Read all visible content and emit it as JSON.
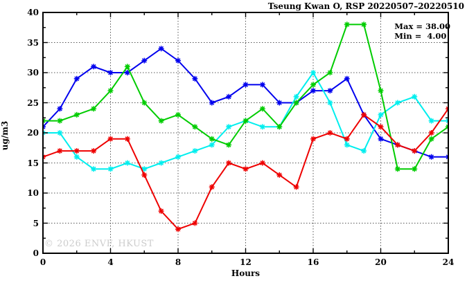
{
  "title": "Tseung Kwan O, RSP 20220507–20220510",
  "legend": {
    "max_label": "Max = 38.00",
    "min_label": "Min =  4.00"
  },
  "watermark": "© 2026 ENVF, HKUST",
  "axes": {
    "y_label": "ug/m3",
    "x_label": "Hours"
  },
  "chart_data": {
    "type": "line",
    "title": "Tseung Kwan O, RSP 20220507–20220510",
    "xlabel": "Hours",
    "ylabel": "ug/m3",
    "xlim": [
      0,
      24
    ],
    "ylim": [
      0,
      40
    ],
    "x_ticks": [
      0,
      4,
      8,
      12,
      16,
      20,
      24
    ],
    "y_ticks": [
      0,
      5,
      10,
      15,
      20,
      25,
      30,
      35,
      40
    ],
    "x_minor_step": 2,
    "y_minor_step": 2.5,
    "grid": true,
    "legend_position": "top-right",
    "annotations": {
      "max": 38.0,
      "min": 4.0
    },
    "x": [
      0,
      1,
      2,
      3,
      4,
      5,
      6,
      7,
      8,
      9,
      10,
      11,
      12,
      13,
      14,
      15,
      16,
      17,
      18,
      19,
      20,
      21,
      22,
      23,
      24
    ],
    "series": [
      {
        "name": "series-1-blue",
        "color": "#0000ee",
        "values": [
          21,
          24,
          29,
          31,
          30,
          30,
          32,
          34,
          32,
          29,
          25,
          26,
          28,
          28,
          25,
          25,
          27,
          27,
          29,
          23,
          19,
          18,
          17,
          16,
          16
        ]
      },
      {
        "name": "series-4-cyan",
        "color": "#00eeee",
        "values": [
          20,
          20,
          16,
          14,
          14,
          15,
          14,
          15,
          16,
          17,
          18,
          21,
          22,
          21,
          21,
          26,
          30,
          25,
          18,
          17,
          23,
          25,
          26,
          22,
          22
        ]
      },
      {
        "name": "series-2-green",
        "color": "#00cc00",
        "values": [
          22,
          22,
          23,
          24,
          27,
          31,
          25,
          22,
          23,
          21,
          19,
          18,
          22,
          24,
          21,
          25,
          28,
          30,
          38,
          38,
          27,
          14,
          14,
          19,
          21
        ]
      },
      {
        "name": "series-3-red",
        "color": "#ee0000",
        "values": [
          16,
          17,
          17,
          17,
          19,
          19,
          13,
          7,
          4,
          5,
          11,
          15,
          14,
          15,
          13,
          11,
          19,
          20,
          19,
          23,
          21,
          18,
          17,
          20,
          24
        ]
      }
    ],
    "frame_color": "#000000",
    "grid_color": "#555555",
    "background": "#ffffff"
  }
}
